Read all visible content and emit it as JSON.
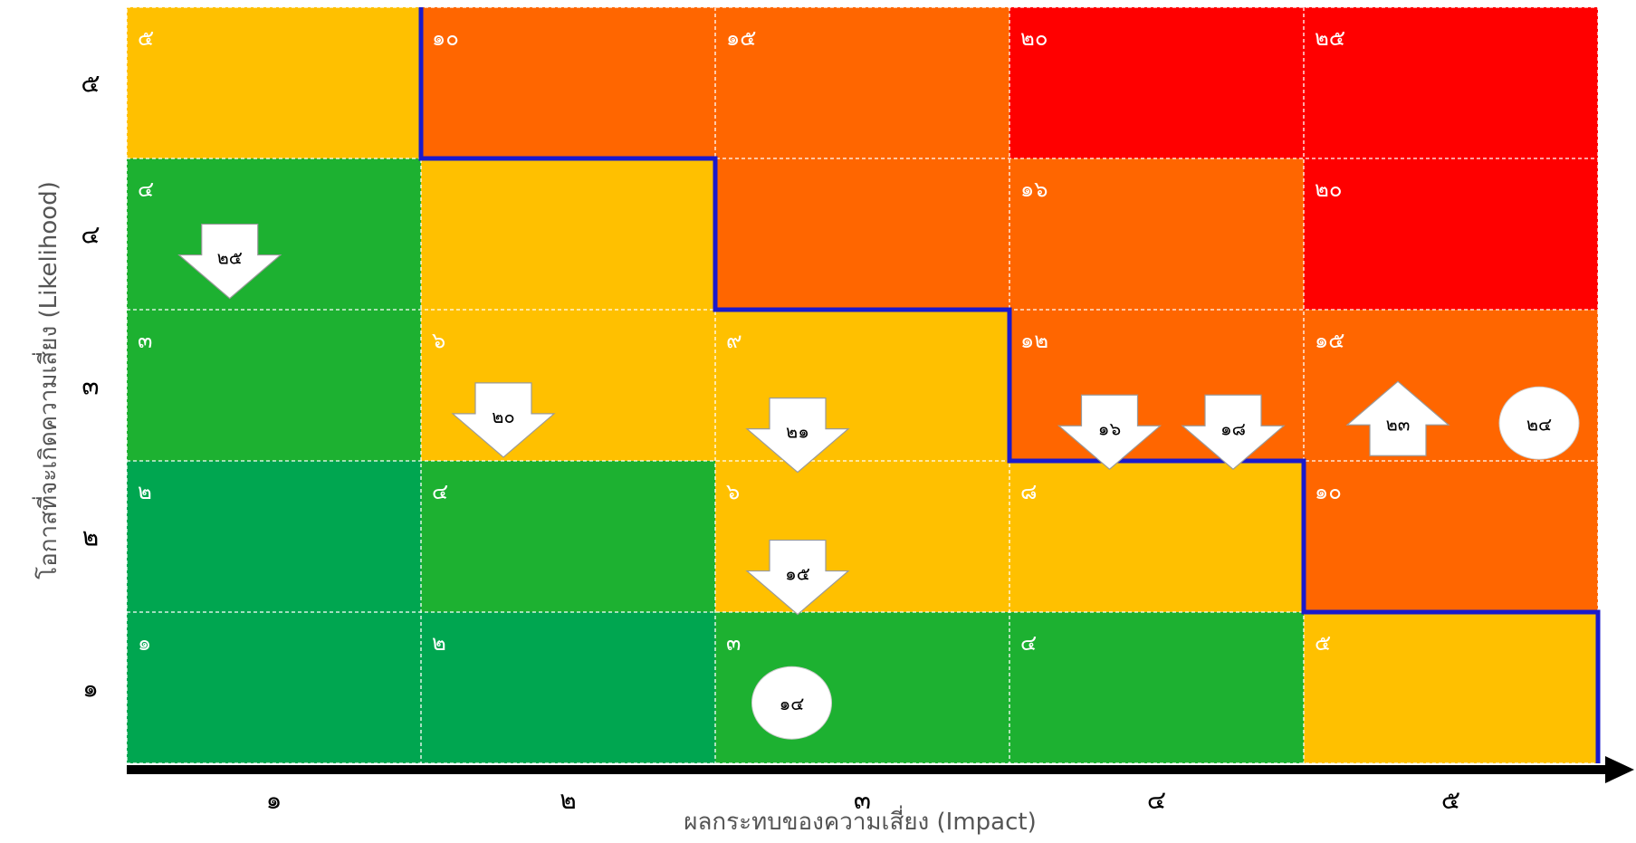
{
  "chart_data": {
    "type": "heatmap",
    "xlabel": "ผลกระทบของความเสี่ยง (Impact)",
    "ylabel": "โอกาสที่จะเกิดความเสี่ยง (Likelihood)",
    "x_ticks": [
      "๑",
      "๒",
      "๓",
      "๔",
      "๕"
    ],
    "y_ticks": [
      "๑",
      "๒",
      "๓",
      "๔",
      "๕"
    ],
    "x_values": [
      1,
      2,
      3,
      4,
      5
    ],
    "y_values": [
      1,
      2,
      3,
      4,
      5
    ],
    "cells": [
      {
        "impact": 1,
        "likelihood": 5,
        "label": "๕",
        "color": "#ffc000"
      },
      {
        "impact": 2,
        "likelihood": 5,
        "label": "๑๐",
        "color": "#ff6600"
      },
      {
        "impact": 3,
        "likelihood": 5,
        "label": "๑๕",
        "color": "#ff6600"
      },
      {
        "impact": 4,
        "likelihood": 5,
        "label": "๒๐",
        "color": "#ff0000"
      },
      {
        "impact": 5,
        "likelihood": 5,
        "label": "๒๕",
        "color": "#ff0000"
      },
      {
        "impact": 1,
        "likelihood": 4,
        "label": "๔",
        "color": "#1db131"
      },
      {
        "impact": 2,
        "likelihood": 4,
        "label": "",
        "color": "#ffc000"
      },
      {
        "impact": 3,
        "likelihood": 4,
        "label": "",
        "color": "#ff6600"
      },
      {
        "impact": 4,
        "likelihood": 4,
        "label": "๑๖",
        "color": "#ff6600"
      },
      {
        "impact": 5,
        "likelihood": 4,
        "label": "๒๐",
        "color": "#ff0000"
      },
      {
        "impact": 1,
        "likelihood": 3,
        "label": "๓",
        "color": "#1db131"
      },
      {
        "impact": 2,
        "likelihood": 3,
        "label": "๖",
        "color": "#ffc000"
      },
      {
        "impact": 3,
        "likelihood": 3,
        "label": "๙",
        "color": "#ffc000"
      },
      {
        "impact": 4,
        "likelihood": 3,
        "label": "๑๒",
        "color": "#ff6600"
      },
      {
        "impact": 5,
        "likelihood": 3,
        "label": "๑๕",
        "color": "#ff6600"
      },
      {
        "impact": 1,
        "likelihood": 2,
        "label": "๒",
        "color": "#00a650"
      },
      {
        "impact": 2,
        "likelihood": 2,
        "label": "๔",
        "color": "#1db131"
      },
      {
        "impact": 3,
        "likelihood": 2,
        "label": "๖",
        "color": "#ffc000"
      },
      {
        "impact": 4,
        "likelihood": 2,
        "label": "๘",
        "color": "#ffc000"
      },
      {
        "impact": 5,
        "likelihood": 2,
        "label": "๑๐",
        "color": "#ff6600"
      },
      {
        "impact": 1,
        "likelihood": 1,
        "label": "๑",
        "color": "#00a650"
      },
      {
        "impact": 2,
        "likelihood": 1,
        "label": "๒",
        "color": "#00a650"
      },
      {
        "impact": 3,
        "likelihood": 1,
        "label": "๓",
        "color": "#1db131"
      },
      {
        "impact": 4,
        "likelihood": 1,
        "label": "๔",
        "color": "#1db131"
      },
      {
        "impact": 5,
        "likelihood": 1,
        "label": "๕",
        "color": "#ffc000"
      }
    ],
    "markers": [
      {
        "id": "๒๕",
        "shape": "arrow-down",
        "impact": 1.35,
        "likelihood": 4.35
      },
      {
        "id": "๒๐",
        "shape": "arrow-down",
        "impact": 2.28,
        "likelihood": 3.3
      },
      {
        "id": "๒๑",
        "shape": "arrow-down",
        "impact": 3.28,
        "likelihood": 3.2
      },
      {
        "id": "๑๕",
        "shape": "arrow-down",
        "impact": 3.28,
        "likelihood": 2.26
      },
      {
        "id": "๑๖",
        "shape": "arrow-down",
        "impact": 4.34,
        "likelihood": 3.22
      },
      {
        "id": "๑๘",
        "shape": "arrow-down",
        "impact": 4.76,
        "likelihood": 3.22
      },
      {
        "id": "๒๓",
        "shape": "arrow-up",
        "impact": 5.32,
        "likelihood": 3.25
      },
      {
        "id": "๒๔",
        "shape": "circle",
        "impact": 5.8,
        "likelihood": 3.25
      },
      {
        "id": "๑๔",
        "shape": "circle",
        "impact": 3.26,
        "likelihood": 1.4
      }
    ],
    "risk_appetite_boundary": [
      [
        1,
        5
      ],
      [
        2,
        4
      ],
      [
        3,
        3
      ],
      [
        4,
        2
      ],
      [
        5,
        1
      ]
    ],
    "grid": true,
    "colors": {
      "low": "#00a650",
      "low_medium": "#1db131",
      "medium": "#ffc000",
      "high": "#ff6600",
      "very_high": "#ff0000",
      "boundary": "#1a1acc",
      "axis": "#000000"
    }
  }
}
